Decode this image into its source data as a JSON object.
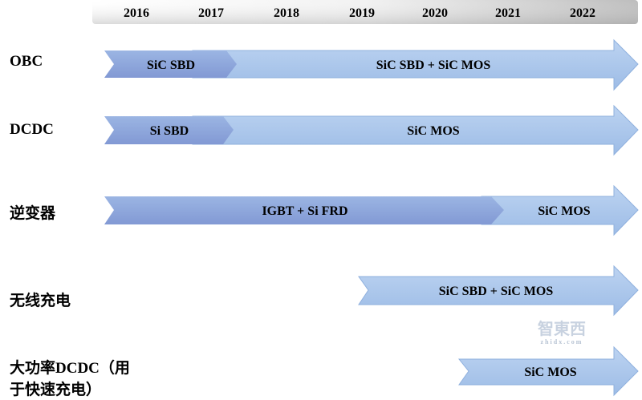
{
  "years": [
    "2016",
    "2017",
    "2018",
    "2019",
    "2020",
    "2021",
    "2022"
  ],
  "rows": [
    {
      "label": "OBC",
      "segments": [
        "SiC SBD",
        "SiC SBD + SiC MOS"
      ]
    },
    {
      "label": "DCDC",
      "segments": [
        "Si SBD",
        "SiC MOS"
      ]
    },
    {
      "label": "逆变器",
      "segments": [
        "IGBT + Si FRD",
        "SiC MOS"
      ]
    },
    {
      "label": "无线充电",
      "segments": [
        "SiC SBD + SiC MOS"
      ]
    },
    {
      "label_line1": "大功率DCDC（用",
      "label_line2": "于快速充电）",
      "segments": [
        "SiC MOS"
      ]
    }
  ],
  "watermark": {
    "text": "智東西",
    "sub": "zhidx.com"
  },
  "colors": {
    "light_arrow": "#a8c4ea",
    "dark_chevron": "#8ea9dc",
    "header_bar": "#e6e6e6"
  }
}
